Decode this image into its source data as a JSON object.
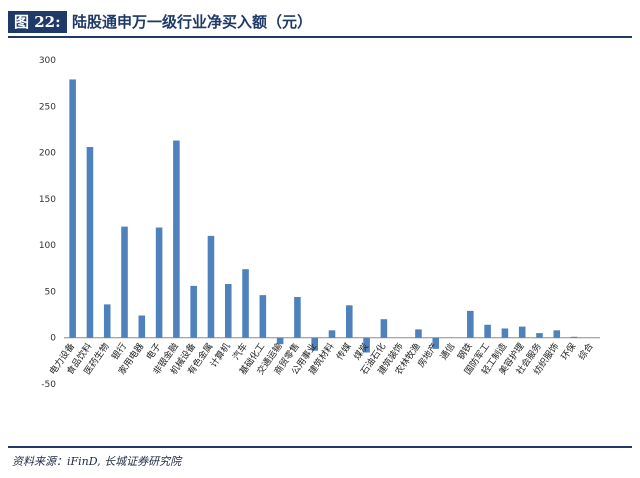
{
  "header": {
    "figure_label": "图 22:",
    "title": "陆股通申万一级行业净买入额（元）"
  },
  "footer": {
    "source": "资料来源：iFinD, 长城证券研究院"
  },
  "chart_data": {
    "type": "bar",
    "title": "陆股通申万一级行业净买入额（元）",
    "xlabel": "",
    "ylabel": "",
    "ylim": [
      -50,
      300
    ],
    "yticks": [
      -50,
      0,
      50,
      100,
      150,
      200,
      250,
      300
    ],
    "grid": false,
    "legend": "none",
    "bar_color": "#4f81bd",
    "categories": [
      "电力设备",
      "食品饮料",
      "医药生物",
      "银行",
      "家用电器",
      "电子",
      "非银金融",
      "机械设备",
      "有色金属",
      "计算机",
      "汽车",
      "基础化工",
      "交通运输",
      "商贸零售",
      "公用事业",
      "建筑材料",
      "传媒",
      "煤炭",
      "石油石化",
      "建筑装饰",
      "农林牧渔",
      "房地产",
      "通信",
      "钢铁",
      "国防军工",
      "轻工制造",
      "美容护理",
      "社会服务",
      "纺织服饰",
      "环保",
      "综合"
    ],
    "values": [
      279,
      206,
      36,
      120,
      24,
      119,
      213,
      56,
      110,
      58,
      74,
      46,
      -7,
      44,
      -14,
      8,
      35,
      -16,
      20,
      0,
      9,
      -12,
      0,
      29,
      14,
      10,
      12,
      5,
      8,
      1,
      0
    ]
  }
}
